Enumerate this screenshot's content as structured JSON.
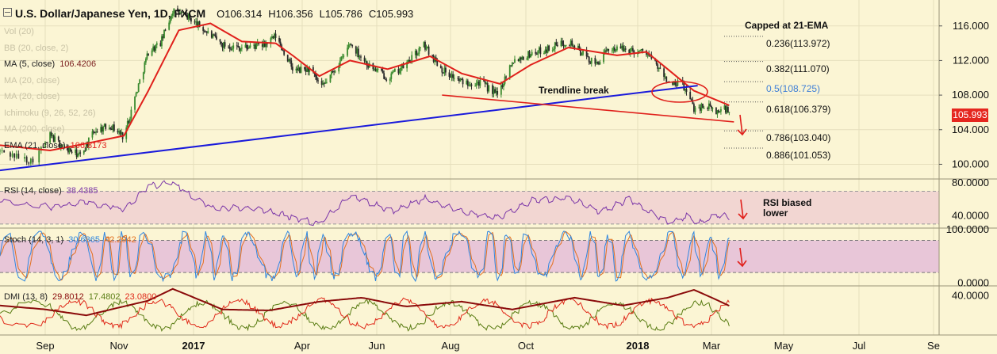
{
  "header": {
    "title": "U.S. Dollar/Japanese Yen, 1D, FXCM",
    "open": "O106.314",
    "high": "H106.356",
    "low": "L105.786",
    "close": "C105.993"
  },
  "indicator_list": [
    {
      "label": "Vol (20)",
      "value": "",
      "active": false
    },
    {
      "label": "BB (20, close, 2)",
      "value": "",
      "active": false
    },
    {
      "label": "MA (5, close)",
      "value": "106.4206",
      "value_color": "#7a1d1d",
      "active": true
    },
    {
      "label": "MA (20, close)",
      "value": "",
      "active": false
    },
    {
      "label": "MA (20, close)",
      "value": "",
      "active": false
    },
    {
      "label": "Ichimoku (9, 26, 52, 26)",
      "value": "",
      "active": false
    },
    {
      "label": "MA (200, close)",
      "value": "",
      "active": false
    },
    {
      "label": "EMA (21, close)",
      "value": "106.8173",
      "value_color": "#e0201b",
      "active": true
    }
  ],
  "annotations": {
    "capped": "Capped at 21-EMA",
    "trendline": "Trendline break",
    "rsi_note_line1": "RSI biased",
    "rsi_note_line2": "lower"
  },
  "fib_levels": [
    {
      "label": "0.236(113.972)",
      "value": 113.972
    },
    {
      "label": "0.382(111.070)",
      "value": 111.07
    },
    {
      "label": "0.5(108.725)",
      "value": 108.725
    },
    {
      "label": "0.618(106.379)",
      "value": 106.379
    },
    {
      "label": "0.786(103.040)",
      "value": 103.04
    },
    {
      "label": "0.886(101.053)",
      "value": 101.053
    }
  ],
  "price_badge": "105.993",
  "colors": {
    "background": "#fbf5d4",
    "candle_up": "#3a8a2e",
    "candle_down": "#2a2a2a",
    "ema21": "#e0201b",
    "trendline": "#1a1adb",
    "fib_mid": "#3f7fd6",
    "rsi_line": "#7b36a8",
    "rsi_band": "#f2d6d2",
    "stoch_k": "#2f86e0",
    "stoch_d": "#e2701f",
    "stoch_band": "#e8c6d8",
    "dmi_adx": "#8a0a0a",
    "dmi_plus": "#5a7d14",
    "dmi_minus": "#e02a1a"
  },
  "chart_data": [
    {
      "type": "candlestick",
      "title": "U.S. Dollar/Japanese Yen, 1D, FXCM",
      "x_tick_labels": [
        "Sep",
        "Nov",
        "2017",
        "Apr",
        "Jun",
        "Aug",
        "Oct",
        "2018",
        "Mar",
        "May",
        "Jul",
        "Se"
      ],
      "x_tick_bold": [
        false,
        false,
        true,
        false,
        false,
        false,
        false,
        true,
        false,
        false,
        false,
        false
      ],
      "y_ticks": [
        100,
        104,
        108,
        112,
        116
      ],
      "y_tick_labels": [
        "100.000",
        "104.000",
        "108.000",
        "112.000",
        "116.000"
      ],
      "ylim": [
        98.3,
        119.0
      ],
      "grid": true,
      "series_points": [
        {
          "date": "2016-08-10",
          "value": 101.5
        },
        {
          "date": "2016-08-25",
          "value": 100.4
        },
        {
          "date": "2016-09-05",
          "value": 103.3
        },
        {
          "date": "2016-09-18",
          "value": 101.8
        },
        {
          "date": "2016-09-30",
          "value": 101.0
        },
        {
          "date": "2016-10-12",
          "value": 103.9
        },
        {
          "date": "2016-10-25",
          "value": 104.5
        },
        {
          "date": "2016-11-05",
          "value": 103.2
        },
        {
          "date": "2016-11-15",
          "value": 108.2
        },
        {
          "date": "2016-11-25",
          "value": 113.0
        },
        {
          "date": "2016-12-05",
          "value": 114.0
        },
        {
          "date": "2016-12-15",
          "value": 117.8
        },
        {
          "date": "2016-12-28",
          "value": 117.0
        },
        {
          "date": "2017-01-10",
          "value": 115.5
        },
        {
          "date": "2017-01-25",
          "value": 113.8
        },
        {
          "date": "2017-02-10",
          "value": 113.5
        },
        {
          "date": "2017-03-01",
          "value": 113.8
        },
        {
          "date": "2017-03-10",
          "value": 114.8
        },
        {
          "date": "2017-03-25",
          "value": 110.8
        },
        {
          "date": "2017-04-07",
          "value": 111.0
        },
        {
          "date": "2017-04-17",
          "value": 108.8
        },
        {
          "date": "2017-05-05",
          "value": 112.5
        },
        {
          "date": "2017-05-10",
          "value": 114.0
        },
        {
          "date": "2017-05-25",
          "value": 111.5
        },
        {
          "date": "2017-06-10",
          "value": 110.0
        },
        {
          "date": "2017-06-25",
          "value": 111.5
        },
        {
          "date": "2017-07-10",
          "value": 113.8
        },
        {
          "date": "2017-07-25",
          "value": 111.0
        },
        {
          "date": "2017-08-10",
          "value": 109.5
        },
        {
          "date": "2017-08-25",
          "value": 109.5
        },
        {
          "date": "2017-09-08",
          "value": 108.0
        },
        {
          "date": "2017-09-20",
          "value": 112.0
        },
        {
          "date": "2017-10-05",
          "value": 112.8
        },
        {
          "date": "2017-10-20",
          "value": 113.4
        },
        {
          "date": "2017-11-05",
          "value": 114.3
        },
        {
          "date": "2017-11-15",
          "value": 113.0
        },
        {
          "date": "2017-11-27",
          "value": 111.5
        },
        {
          "date": "2017-12-10",
          "value": 113.5
        },
        {
          "date": "2017-12-25",
          "value": 113.2
        },
        {
          "date": "2018-01-08",
          "value": 113.0
        },
        {
          "date": "2018-01-18",
          "value": 111.0
        },
        {
          "date": "2018-01-28",
          "value": 109.0
        },
        {
          "date": "2018-02-05",
          "value": 109.5
        },
        {
          "date": "2018-02-15",
          "value": 106.5
        },
        {
          "date": "2018-02-25",
          "value": 106.8
        },
        {
          "date": "2018-03-05",
          "value": 106.0
        },
        {
          "date": "2018-03-12",
          "value": 106.5
        },
        {
          "date": "2018-03-16",
          "value": 105.99
        }
      ],
      "ema21_points": [
        {
          "date": "2016-08-10",
          "value": 102.2
        },
        {
          "date": "2016-09-05",
          "value": 101.6
        },
        {
          "date": "2016-10-05",
          "value": 102.4
        },
        {
          "date": "2016-11-05",
          "value": 103.3
        },
        {
          "date": "2016-11-25",
          "value": 108.5
        },
        {
          "date": "2016-12-20",
          "value": 115.5
        },
        {
          "date": "2017-01-15",
          "value": 116.3
        },
        {
          "date": "2017-02-10",
          "value": 114.2
        },
        {
          "date": "2017-03-10",
          "value": 114.0
        },
        {
          "date": "2017-03-25",
          "value": 112.5
        },
        {
          "date": "2017-04-15",
          "value": 110.2
        },
        {
          "date": "2017-05-10",
          "value": 112.0
        },
        {
          "date": "2017-06-10",
          "value": 111.0
        },
        {
          "date": "2017-07-15",
          "value": 112.5
        },
        {
          "date": "2017-08-10",
          "value": 110.5
        },
        {
          "date": "2017-09-10",
          "value": 109.3
        },
        {
          "date": "2017-10-05",
          "value": 111.5
        },
        {
          "date": "2017-11-05",
          "value": 113.5
        },
        {
          "date": "2017-12-15",
          "value": 112.6
        },
        {
          "date": "2018-01-08",
          "value": 113.0
        },
        {
          "date": "2018-01-25",
          "value": 111.0
        },
        {
          "date": "2018-02-15",
          "value": 108.5
        },
        {
          "date": "2018-03-16",
          "value": 106.82
        }
      ],
      "trendline": [
        {
          "date": "2016-08-10",
          "value": 99.3
        },
        {
          "date": "2018-02-18",
          "value": 109.1
        }
      ],
      "channel_line": [
        {
          "date": "2017-07-25",
          "value": 108.0
        },
        {
          "date": "2018-03-20",
          "value": 104.9
        }
      ]
    },
    {
      "type": "line",
      "title": "RSI (14, close)",
      "value_label": "38.4385",
      "y_tick_labels": [
        "40.0000",
        "80.0000"
      ],
      "y_ticks": [
        40,
        80
      ],
      "ylim": [
        25,
        85
      ],
      "bands": [
        30,
        70
      ],
      "series": [
        {
          "values_by_date": [
            {
              "date": "2016-08-10",
              "value": 56
            },
            {
              "date": "2016-09-05",
              "value": 51
            },
            {
              "date": "2016-10-05",
              "value": 57
            },
            {
              "date": "2016-11-05",
              "value": 48
            },
            {
              "date": "2016-11-25",
              "value": 76
            },
            {
              "date": "2016-12-15",
              "value": 80
            },
            {
              "date": "2017-01-15",
              "value": 50
            },
            {
              "date": "2017-02-20",
              "value": 49
            },
            {
              "date": "2017-03-20",
              "value": 40
            },
            {
              "date": "2017-04-15",
              "value": 30
            },
            {
              "date": "2017-05-10",
              "value": 64
            },
            {
              "date": "2017-06-15",
              "value": 46
            },
            {
              "date": "2017-07-10",
              "value": 61
            },
            {
              "date": "2017-08-15",
              "value": 43
            },
            {
              "date": "2017-09-10",
              "value": 38
            },
            {
              "date": "2017-10-05",
              "value": 58
            },
            {
              "date": "2017-11-05",
              "value": 63
            },
            {
              "date": "2017-12-01",
              "value": 45
            },
            {
              "date": "2017-12-25",
              "value": 60
            },
            {
              "date": "2018-01-25",
              "value": 32
            },
            {
              "date": "2018-02-10",
              "value": 40
            },
            {
              "date": "2018-02-18",
              "value": 30
            },
            {
              "date": "2018-03-05",
              "value": 41
            },
            {
              "date": "2018-03-16",
              "value": 38.4
            }
          ]
        }
      ]
    },
    {
      "type": "line",
      "title": "Stoch (14, 3, 1)",
      "value_labels": [
        "30.6365",
        "42.2942"
      ],
      "y_tick_labels": [
        "0.0000",
        "100.0000"
      ],
      "y_ticks": [
        0,
        100
      ],
      "ylim": [
        -5,
        103
      ],
      "bands": [
        20,
        80
      ],
      "series": [
        {
          "name": "%K",
          "shape": "oscillating 10-95 with ~30 cycles"
        },
        {
          "name": "%D",
          "shape": "smoothed %K"
        }
      ]
    },
    {
      "type": "line",
      "title": "DMI (13, 8)",
      "value_labels": [
        "29.8012",
        "17.4802",
        "23.0800"
      ],
      "y_tick_labels": [
        "40.0000"
      ],
      "y_ticks": [
        40
      ],
      "ylim": [
        0,
        50
      ],
      "series": [
        {
          "name": "ADX",
          "values_by_date": [
            {
              "date": "2016-08-10",
              "value": 30
            },
            {
              "date": "2016-10-05",
              "value": 20
            },
            {
              "date": "2016-11-25",
              "value": 35
            },
            {
              "date": "2016-12-15",
              "value": 47
            },
            {
              "date": "2017-01-25",
              "value": 26
            },
            {
              "date": "2017-03-05",
              "value": 25
            },
            {
              "date": "2017-04-15",
              "value": 34
            },
            {
              "date": "2017-05-20",
              "value": 38
            },
            {
              "date": "2017-06-25",
              "value": 29
            },
            {
              "date": "2017-08-10",
              "value": 34
            },
            {
              "date": "2017-09-20",
              "value": 26
            },
            {
              "date": "2017-11-10",
              "value": 38
            },
            {
              "date": "2017-12-20",
              "value": 30
            },
            {
              "date": "2018-01-25",
              "value": 38
            },
            {
              "date": "2018-02-15",
              "value": 46
            },
            {
              "date": "2018-03-16",
              "value": 29.8
            }
          ]
        },
        {
          "name": "+DI",
          "shape": "oscillating 5-35"
        },
        {
          "name": "-DI",
          "shape": "oscillating 8-40"
        }
      ]
    }
  ]
}
